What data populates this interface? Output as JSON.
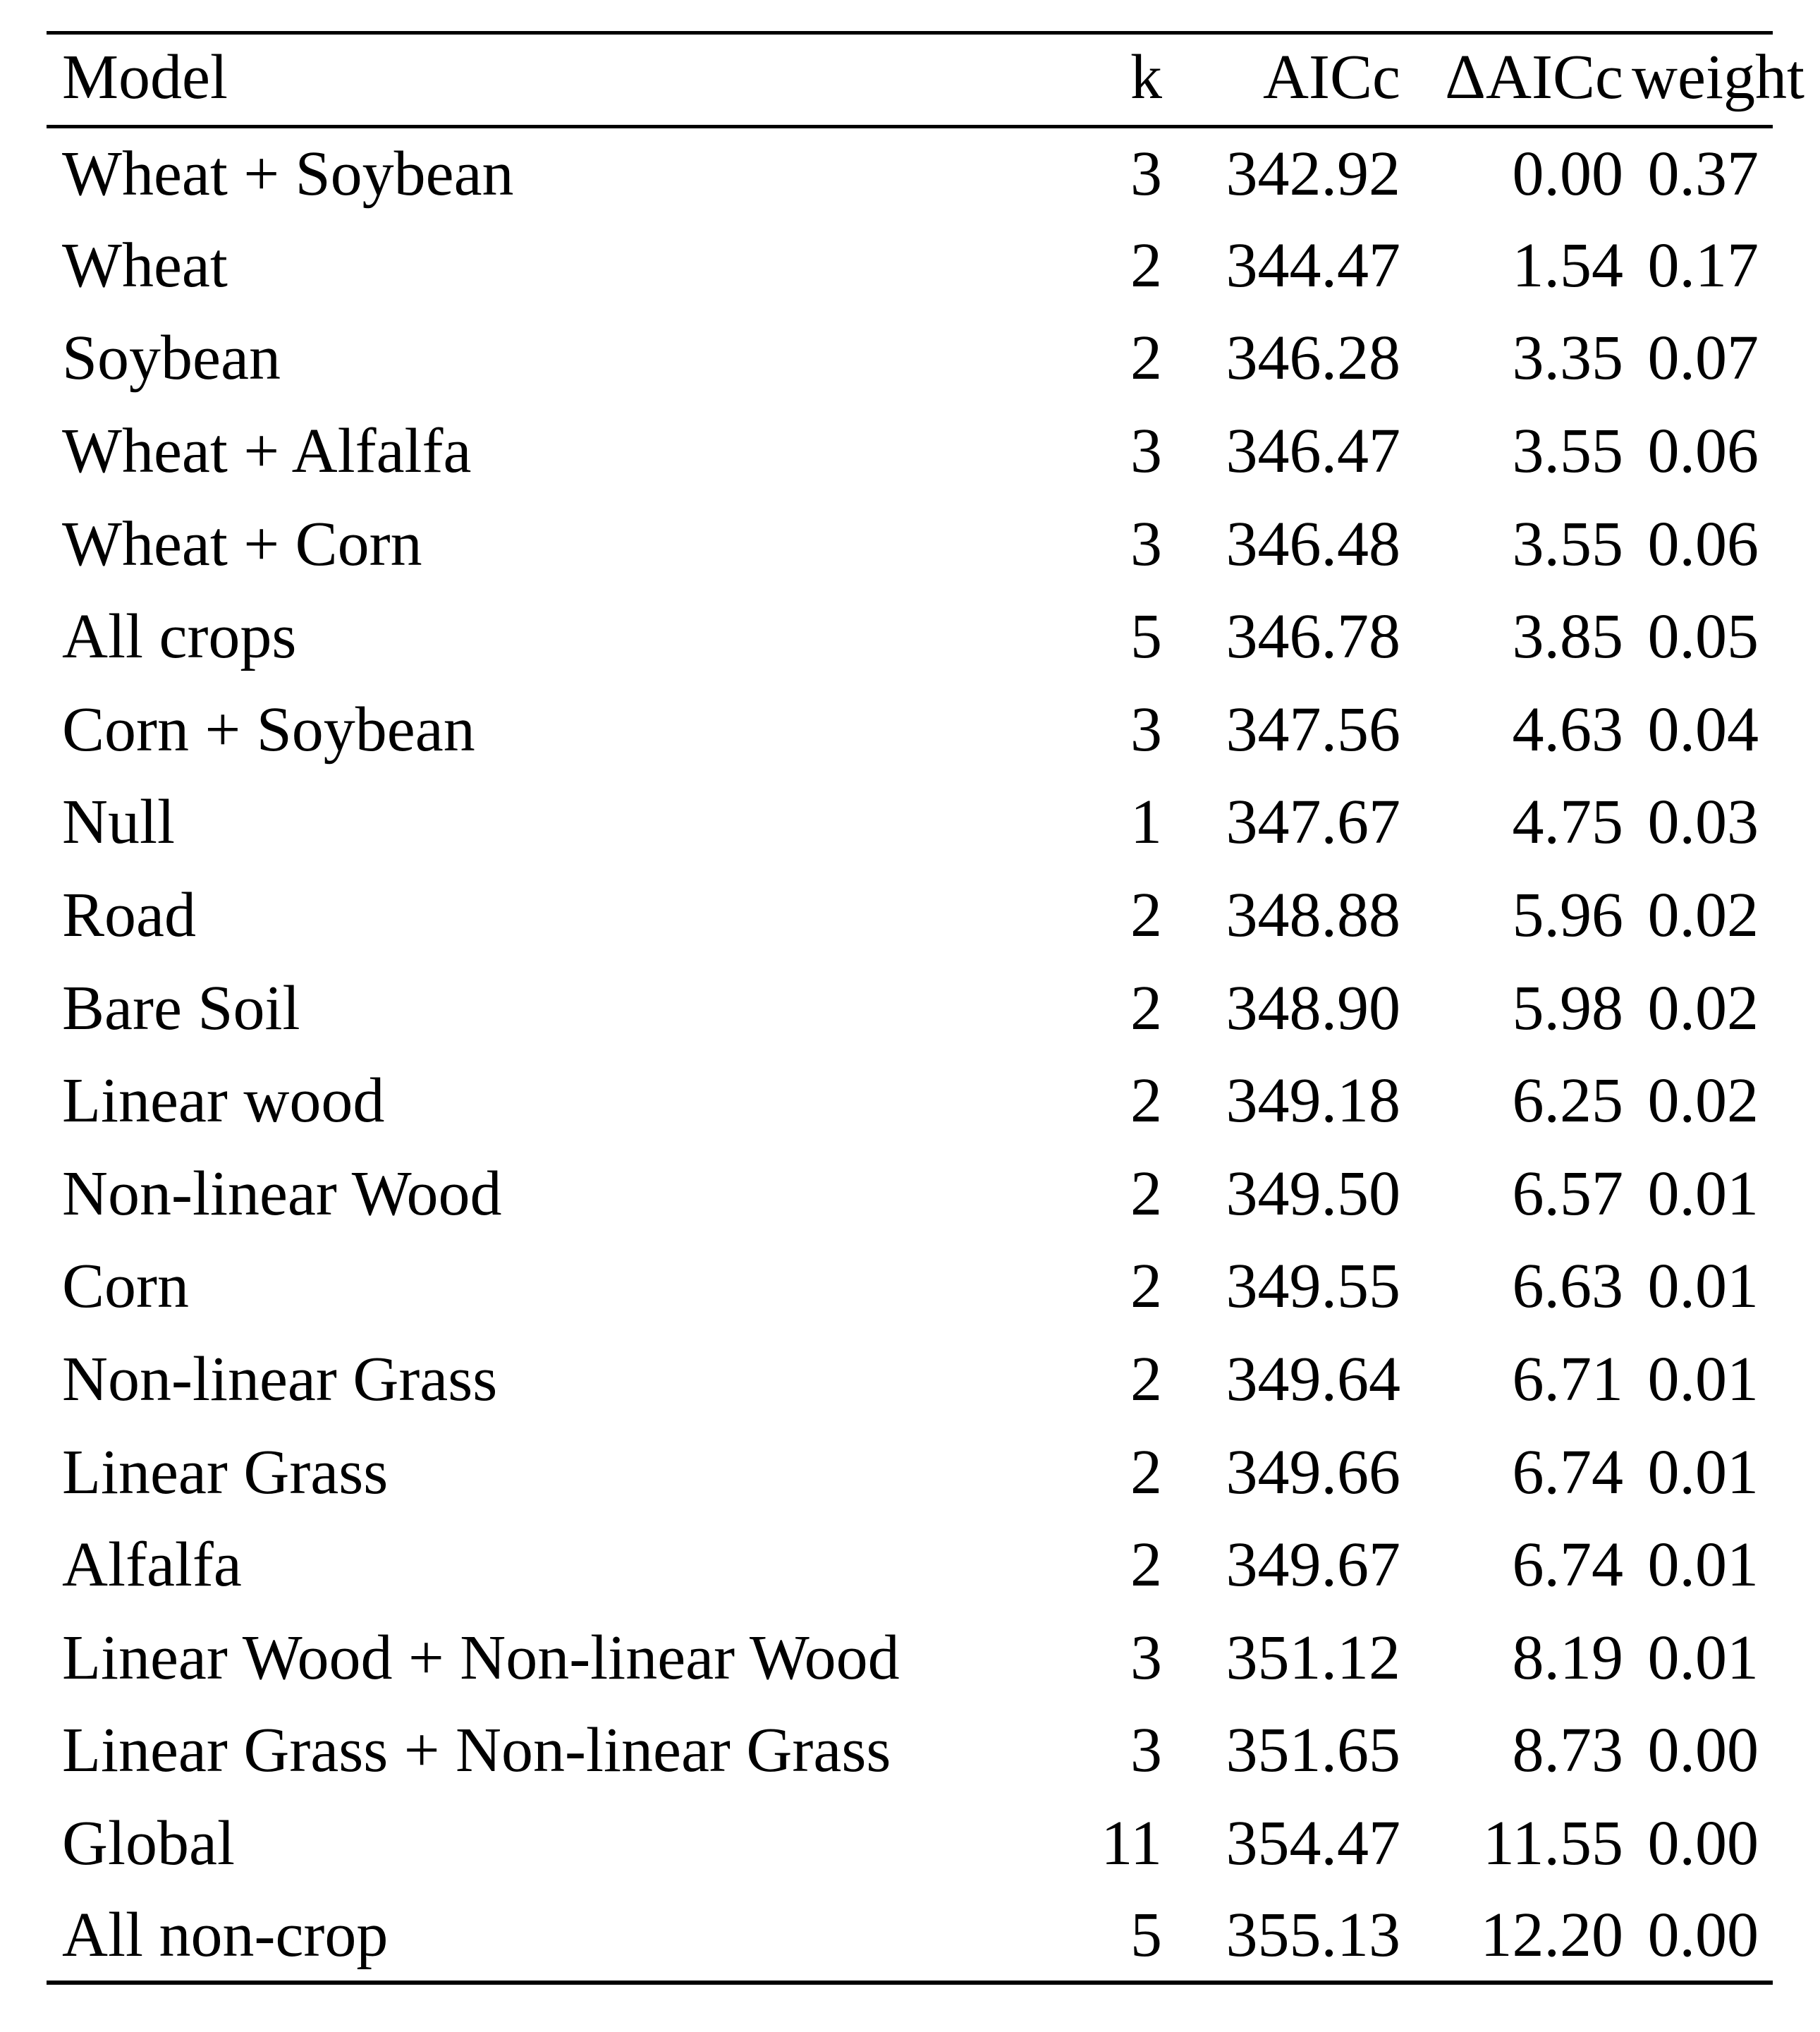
{
  "table": {
    "headers": {
      "model": "Model",
      "k": "k",
      "aicc": "AICc",
      "delta_aicc": "ΔAICc",
      "weight": "weight"
    },
    "rows": [
      {
        "model": "Wheat + Soybean",
        "k": "3",
        "aicc": "342.92",
        "delta_aicc": "0.00",
        "weight": "0.37"
      },
      {
        "model": "Wheat",
        "k": "2",
        "aicc": "344.47",
        "delta_aicc": "1.54",
        "weight": "0.17"
      },
      {
        "model": "Soybean",
        "k": "2",
        "aicc": "346.28",
        "delta_aicc": "3.35",
        "weight": "0.07"
      },
      {
        "model": "Wheat + Alfalfa",
        "k": "3",
        "aicc": "346.47",
        "delta_aicc": "3.55",
        "weight": "0.06"
      },
      {
        "model": "Wheat + Corn",
        "k": "3",
        "aicc": "346.48",
        "delta_aicc": "3.55",
        "weight": "0.06"
      },
      {
        "model": "All crops",
        "k": "5",
        "aicc": "346.78",
        "delta_aicc": "3.85",
        "weight": "0.05"
      },
      {
        "model": "Corn + Soybean",
        "k": "3",
        "aicc": "347.56",
        "delta_aicc": "4.63",
        "weight": "0.04"
      },
      {
        "model": "Null",
        "k": "1",
        "aicc": "347.67",
        "delta_aicc": "4.75",
        "weight": "0.03"
      },
      {
        "model": "Road",
        "k": "2",
        "aicc": "348.88",
        "delta_aicc": "5.96",
        "weight": "0.02"
      },
      {
        "model": "Bare Soil",
        "k": "2",
        "aicc": "348.90",
        "delta_aicc": "5.98",
        "weight": "0.02"
      },
      {
        "model": "Linear wood",
        "k": "2",
        "aicc": "349.18",
        "delta_aicc": "6.25",
        "weight": "0.02"
      },
      {
        "model": "Non-linear Wood",
        "k": "2",
        "aicc": "349.50",
        "delta_aicc": "6.57",
        "weight": "0.01"
      },
      {
        "model": "Corn",
        "k": "2",
        "aicc": "349.55",
        "delta_aicc": "6.63",
        "weight": "0.01"
      },
      {
        "model": "Non-linear Grass",
        "k": "2",
        "aicc": "349.64",
        "delta_aicc": "6.71",
        "weight": "0.01"
      },
      {
        "model": "Linear Grass",
        "k": "2",
        "aicc": "349.66",
        "delta_aicc": "6.74",
        "weight": "0.01"
      },
      {
        "model": "Alfalfa",
        "k": "2",
        "aicc": "349.67",
        "delta_aicc": "6.74",
        "weight": "0.01"
      },
      {
        "model": "Linear Wood + Non-linear Wood",
        "k": "3",
        "aicc": "351.12",
        "delta_aicc": "8.19",
        "weight": "0.01"
      },
      {
        "model": "Linear Grass + Non-linear Grass",
        "k": "3",
        "aicc": "351.65",
        "delta_aicc": "8.73",
        "weight": "0.00"
      },
      {
        "model": "Global",
        "k": "11",
        "aicc": "354.47",
        "delta_aicc": "11.55",
        "weight": "0.00"
      },
      {
        "model": "All non-crop",
        "k": "5",
        "aicc": "355.13",
        "delta_aicc": "12.20",
        "weight": "0.00"
      }
    ]
  }
}
